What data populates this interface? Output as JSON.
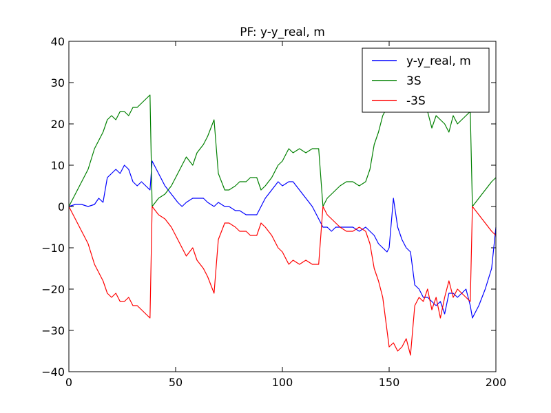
{
  "chart_data": {
    "type": "line",
    "title": "PF: y-y_real, m",
    "xlabel": "",
    "ylabel": "",
    "xlim": [
      0,
      200
    ],
    "ylim": [
      -40,
      40
    ],
    "xticks": [
      0,
      50,
      100,
      150,
      200
    ],
    "yticks": [
      -40,
      -30,
      -20,
      -10,
      0,
      10,
      20,
      30,
      40
    ],
    "xtick_labels": [
      "0",
      "50",
      "100",
      "150",
      "200"
    ],
    "ytick_labels": [
      "−40",
      "−30",
      "−20",
      "−10",
      "0",
      "10",
      "20",
      "30",
      "40"
    ],
    "grid": false,
    "legend_position": "top-right",
    "series": [
      {
        "name": "y-y_real, m",
        "color": "#0000ff",
        "x": [
          0,
          3,
          6,
          9,
          12,
          14,
          16,
          18,
          20,
          22,
          24,
          26,
          28,
          30,
          32,
          34,
          36,
          38,
          39,
          42,
          45,
          48,
          51,
          53,
          55,
          58,
          60,
          63,
          65,
          68,
          70,
          73,
          75,
          78,
          80,
          83,
          85,
          88,
          90,
          92,
          95,
          98,
          100,
          103,
          105,
          108,
          111,
          114,
          117,
          119,
          121,
          123,
          125,
          127,
          130,
          133,
          136,
          139,
          141,
          143,
          145,
          147,
          149,
          150,
          152,
          154,
          156,
          158,
          160,
          162,
          164,
          166,
          168,
          170,
          172,
          174,
          176,
          178,
          180,
          182,
          184,
          186,
          188,
          189,
          192,
          195,
          198,
          200
        ],
        "values": [
          0,
          0.5,
          0.5,
          0,
          0.5,
          2,
          1,
          7,
          8,
          9,
          8,
          10,
          9,
          6,
          5,
          6,
          5,
          4,
          11,
          8,
          5,
          3,
          1,
          0,
          1,
          2,
          2,
          2,
          1,
          0,
          1,
          0,
          0,
          -1,
          -1,
          -2,
          -2,
          -2,
          0,
          2,
          4,
          6,
          5,
          6,
          6,
          4,
          2,
          0,
          -3,
          -5,
          -5,
          -6,
          -5,
          -5,
          -5,
          -5,
          -6,
          -5,
          -6,
          -7,
          -9,
          -10,
          -11,
          -10,
          2,
          -5,
          -8,
          -10,
          -11,
          -19,
          -20,
          -22,
          -22,
          -23,
          -24,
          -23,
          -26,
          -21,
          -21,
          -22,
          -21,
          -20,
          -24,
          -27,
          -24,
          -20,
          -15,
          -5
        ]
      },
      {
        "name": "3S",
        "color": "#008000",
        "x": [
          0,
          3,
          6,
          9,
          12,
          14,
          16,
          18,
          20,
          22,
          24,
          26,
          28,
          30,
          32,
          34,
          36,
          38,
          39,
          42,
          45,
          48,
          51,
          53,
          55,
          58,
          60,
          63,
          65,
          68,
          70,
          73,
          75,
          78,
          80,
          83,
          85,
          88,
          90,
          92,
          95,
          98,
          100,
          103,
          105,
          108,
          111,
          114,
          117,
          119,
          121,
          123,
          125,
          127,
          130,
          133,
          136,
          139,
          141,
          143,
          145,
          147,
          149,
          150,
          152,
          154,
          156,
          158,
          160,
          162,
          164,
          166,
          168,
          170,
          172,
          174,
          176,
          178,
          180,
          182,
          184,
          186,
          188,
          189,
          192,
          195,
          198,
          200
        ],
        "values": [
          0,
          3,
          6,
          9,
          14,
          16,
          18,
          21,
          22,
          21,
          23,
          23,
          22,
          24,
          24,
          25,
          26,
          27,
          0,
          2,
          3,
          5,
          8,
          10,
          12,
          10,
          13,
          15,
          17,
          21,
          8,
          4,
          4,
          5,
          6,
          6,
          7,
          7,
          4,
          5,
          7,
          10,
          11,
          14,
          13,
          14,
          13,
          14,
          14,
          0,
          2,
          3,
          4,
          5,
          6,
          6,
          5,
          6,
          9,
          15,
          18,
          22,
          24,
          25,
          26,
          25,
          26,
          24,
          25,
          24,
          25,
          24,
          23,
          19,
          22,
          21,
          20,
          18,
          22,
          20,
          21,
          22,
          23,
          0,
          2,
          4,
          6,
          7
        ]
      },
      {
        "name": "-3S",
        "color": "#ff0000",
        "x": [
          0,
          3,
          6,
          9,
          12,
          14,
          16,
          18,
          20,
          22,
          24,
          26,
          28,
          30,
          32,
          34,
          36,
          38,
          39,
          42,
          45,
          48,
          51,
          53,
          55,
          58,
          60,
          63,
          65,
          68,
          70,
          73,
          75,
          78,
          80,
          83,
          85,
          88,
          90,
          92,
          95,
          98,
          100,
          103,
          105,
          108,
          111,
          114,
          117,
          119,
          121,
          123,
          125,
          127,
          130,
          133,
          136,
          139,
          141,
          143,
          145,
          147,
          149,
          150,
          152,
          154,
          156,
          158,
          160,
          162,
          164,
          166,
          168,
          170,
          172,
          174,
          176,
          178,
          180,
          182,
          184,
          186,
          188,
          189,
          192,
          195,
          198,
          200
        ],
        "values": [
          0,
          -3,
          -6,
          -9,
          -14,
          -16,
          -18,
          -21,
          -22,
          -21,
          -23,
          -23,
          -22,
          -24,
          -24,
          -25,
          -26,
          -27,
          0,
          -2,
          -3,
          -5,
          -8,
          -10,
          -12,
          -10,
          -13,
          -15,
          -17,
          -21,
          -8,
          -4,
          -4,
          -5,
          -6,
          -6,
          -7,
          -7,
          -4,
          -5,
          -7,
          -10,
          -11,
          -14,
          -13,
          -14,
          -13,
          -14,
          -14,
          0,
          -2,
          -3,
          -4,
          -5,
          -6,
          -6,
          -5,
          -6,
          -9,
          -15,
          -18,
          -22,
          -30,
          -34,
          -33,
          -35,
          -34,
          -32,
          -36,
          -24,
          -22,
          -23,
          -20,
          -25,
          -22,
          -27,
          -22,
          -18,
          -22,
          -20,
          -21,
          -22,
          -23,
          0,
          -2,
          -4,
          -6,
          -7
        ]
      }
    ]
  }
}
